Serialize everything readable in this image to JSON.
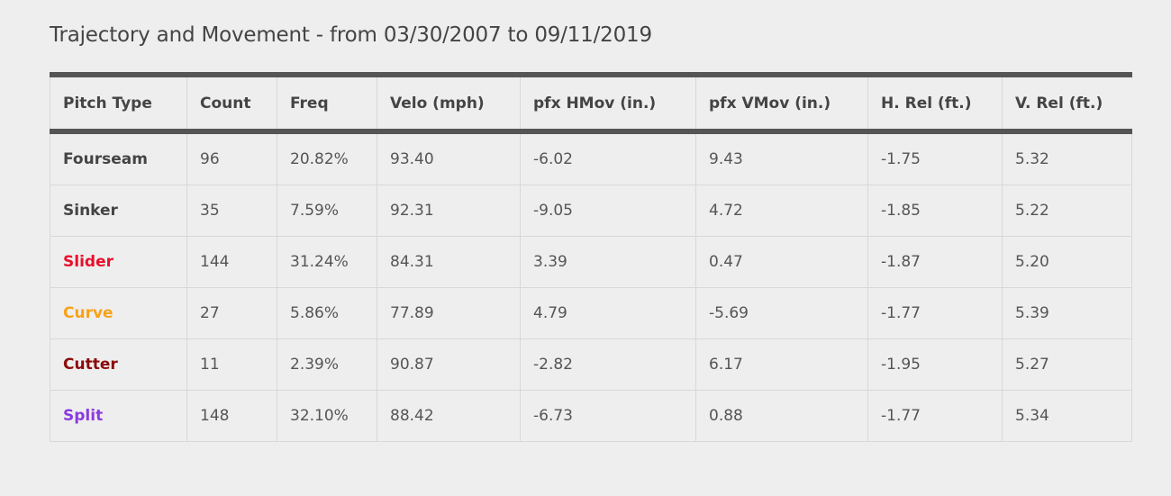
{
  "header": {
    "title": "Trajectory and Movement - from 03/30/2007 to 09/11/2019"
  },
  "table": {
    "columns": [
      "Pitch Type",
      "Count",
      "Freq",
      "Velo (mph)",
      "pfx HMov (in.)",
      "pfx VMov (in.)",
      "H. Rel (ft.)",
      "V. Rel (ft.)"
    ],
    "rows": [
      [
        "Fourseam",
        "96",
        "20.82%",
        "93.40",
        "-6.02",
        "9.43",
        "-1.75",
        "5.32"
      ],
      [
        "Sinker",
        "35",
        "7.59%",
        "92.31",
        "-9.05",
        "4.72",
        "-1.85",
        "5.22"
      ],
      [
        "Slider",
        "144",
        "31.24%",
        "84.31",
        "3.39",
        "0.47",
        "-1.87",
        "5.20"
      ],
      [
        "Curve",
        "27",
        "5.86%",
        "77.89",
        "4.79",
        "-5.69",
        "-1.77",
        "5.39"
      ],
      [
        "Cutter",
        "11",
        "2.39%",
        "90.87",
        "-2.82",
        "6.17",
        "-1.95",
        "5.27"
      ],
      [
        "Split",
        "148",
        "32.10%",
        "88.42",
        "-6.73",
        "0.88",
        "-1.77",
        "5.34"
      ]
    ]
  }
}
